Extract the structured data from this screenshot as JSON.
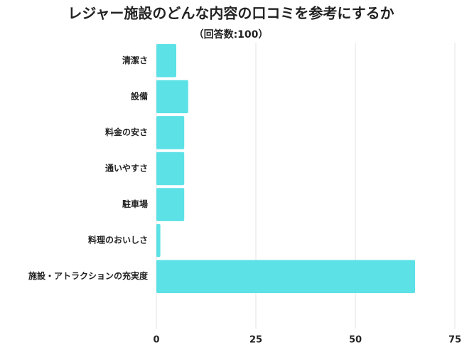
{
  "chart_data": {
    "type": "hbar",
    "title": "レジャー施設のどんな内容の口コミを参考にするか",
    "subtitle": "（回答数:100）",
    "categories": [
      "清潔さ",
      "設備",
      "料金の安さ",
      "通いやすさ",
      "駐車場",
      "料理のおいしさ",
      "施設・アトラクションの充実度"
    ],
    "values": [
      5,
      8,
      7,
      7,
      7,
      1,
      65
    ],
    "color": "#5ce1e6",
    "xlim": [
      0,
      75
    ],
    "xticks": [
      0,
      25,
      50,
      75
    ],
    "grid": true
  }
}
